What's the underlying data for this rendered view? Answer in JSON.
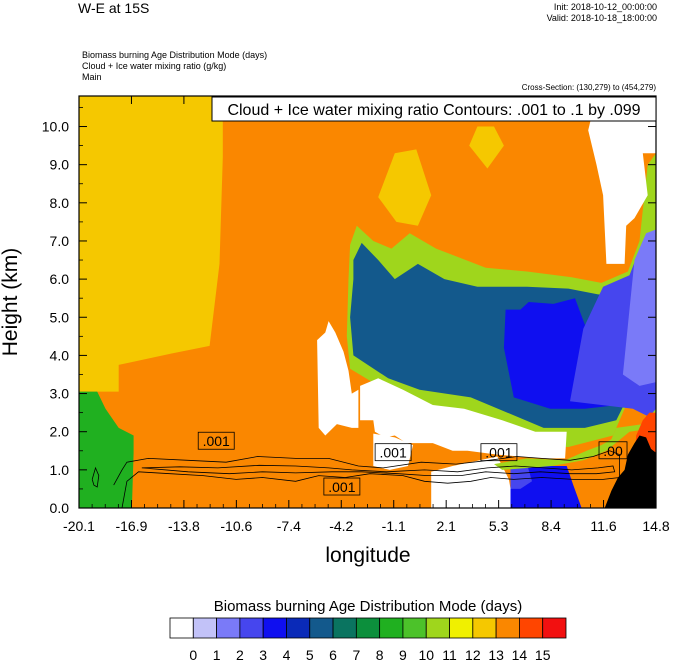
{
  "header": {
    "title": "W-E at 15S",
    "init": "Init: 2018-10-12_00:00:00",
    "valid": "Valid: 2018-10-18_18:00:00",
    "desc_lines": [
      "Biomass burning Age Distribution Mode    (days)",
      "Cloud + Ice water mixing ratio    (g/kg)",
      "Main"
    ],
    "cross_section": "Cross-Section: (130,279) to (454,279)"
  },
  "chart_data": {
    "type": "heatmap",
    "title": "",
    "xlabel": "longitude",
    "ylabel": "Height (km)",
    "xlim": [
      -20.1,
      14.8
    ],
    "ylim": [
      0.0,
      10.8
    ],
    "x_ticks": [
      "-20.1",
      "-16.9",
      "-13.8",
      "-10.6",
      "-7.4",
      "-4.2",
      "-1.1",
      "2.1",
      "5.3",
      "8.4",
      "11.6",
      "14.8"
    ],
    "y_ticks": [
      "0.0",
      "1.0",
      "2.0",
      "3.0",
      "4.0",
      "5.0",
      "6.0",
      "7.0",
      "8.0",
      "9.0",
      "10.0"
    ],
    "contour_title": "Cloud + Ice water mixing ratio Contours: .001 to .1 by .099",
    "contour_labels": [
      {
        "text": ".001",
        "x": -11.8,
        "y": 1.75
      },
      {
        "text": ".001",
        "x": -4.2,
        "y": 0.55
      },
      {
        "text": ".001",
        "x": -1.1,
        "y": 1.45
      },
      {
        "text": ".001",
        "x": 5.3,
        "y": 1.45
      },
      {
        "text": ".00",
        "x": 12.2,
        "y": 1.5
      }
    ],
    "colorbar": {
      "title": "Biomass burning Age Distribution Mode  (days)",
      "labels": [
        "0",
        "1",
        "2",
        "3",
        "4",
        "5",
        "6",
        "7",
        "8",
        "9",
        "10",
        "11",
        "12",
        "13",
        "14",
        "15"
      ],
      "colors": [
        "#ffffff",
        "#c2c2f8",
        "#7a7af8",
        "#4646ee",
        "#0f0ff0",
        "#0a2ab8",
        "#13598c",
        "#0a7460",
        "#0c8f3c",
        "#20b020",
        "#4cc22a",
        "#9fd61c",
        "#f0f000",
        "#f5c800",
        "#fa8700",
        "#ff4500",
        "#f21010"
      ]
    },
    "regions": [
      {
        "days": 13,
        "points": [
          [
            -20.1,
            3.05
          ],
          [
            -20.1,
            10.8
          ],
          [
            -11.4,
            10.8
          ],
          [
            -11.4,
            9.2
          ],
          [
            -11.6,
            6.4
          ],
          [
            -12.2,
            4.25
          ],
          [
            -14.5,
            4.05
          ],
          [
            -17.7,
            3.75
          ],
          [
            -17.7,
            3.05
          ]
        ]
      },
      {
        "days": 9,
        "points": [
          [
            -20.1,
            0.0
          ],
          [
            -20.1,
            3.05
          ],
          [
            -19.0,
            3.05
          ],
          [
            -18.5,
            2.6
          ],
          [
            -17.7,
            2.1
          ],
          [
            -16.8,
            1.9
          ],
          [
            -16.8,
            1.45
          ],
          [
            -16.9,
            0.0
          ]
        ]
      },
      {
        "days": 13,
        "points": [
          [
            -2.0,
            8.15
          ],
          [
            -1.0,
            9.3
          ],
          [
            0.3,
            9.4
          ],
          [
            1.2,
            8.2
          ],
          [
            0.4,
            7.4
          ],
          [
            -0.9,
            7.5
          ]
        ]
      },
      {
        "days": 13,
        "points": [
          [
            3.5,
            9.5
          ],
          [
            4.0,
            10.0
          ],
          [
            5.0,
            10.0
          ],
          [
            5.6,
            9.5
          ],
          [
            4.6,
            8.9
          ]
        ]
      },
      {
        "days": 11,
        "points": [
          [
            -3.7,
            6.9
          ],
          [
            -3.3,
            7.4
          ],
          [
            -2.3,
            7.0
          ],
          [
            -1.2,
            6.8
          ],
          [
            -0.1,
            7.2
          ],
          [
            1.5,
            6.8
          ],
          [
            4.5,
            6.3
          ],
          [
            7.0,
            6.2
          ],
          [
            9.7,
            6.05
          ],
          [
            11.5,
            5.9
          ],
          [
            13.1,
            6.2
          ],
          [
            13.8,
            7.0
          ],
          [
            14.3,
            9.0
          ],
          [
            14.8,
            9.3
          ],
          [
            14.8,
            4.25
          ],
          [
            13.5,
            3.2
          ],
          [
            12.2,
            1.9
          ],
          [
            9.5,
            1.6
          ],
          [
            7.0,
            1.6
          ],
          [
            4.0,
            2.3
          ],
          [
            0.8,
            2.6
          ],
          [
            -1.2,
            3.0
          ],
          [
            -3.7,
            3.65
          ],
          [
            -3.9,
            4.5
          ],
          [
            -3.8,
            6.0
          ]
        ]
      },
      {
        "days": 6,
        "points": [
          [
            -3.5,
            6.5
          ],
          [
            -3.0,
            6.95
          ],
          [
            -2.0,
            6.5
          ],
          [
            -1.0,
            6.0
          ],
          [
            0.4,
            6.4
          ],
          [
            2.0,
            6.0
          ],
          [
            4.0,
            5.8
          ],
          [
            7.0,
            5.8
          ],
          [
            9.5,
            5.75
          ],
          [
            11.3,
            5.6
          ],
          [
            14.0,
            5.5
          ],
          [
            14.8,
            4.4
          ],
          [
            14.8,
            3.0
          ],
          [
            13.2,
            3.0
          ],
          [
            12.4,
            2.3
          ],
          [
            10.5,
            2.1
          ],
          [
            8.0,
            2.1
          ],
          [
            5.8,
            2.5
          ],
          [
            3.6,
            2.9
          ],
          [
            0.5,
            3.1
          ],
          [
            -1.4,
            3.4
          ],
          [
            -3.5,
            4.0
          ],
          [
            -3.7,
            5.0
          ],
          [
            -3.5,
            6.0
          ]
        ]
      },
      {
        "days": 4,
        "points": [
          [
            5.6,
            4.2
          ],
          [
            5.7,
            5.2
          ],
          [
            6.6,
            5.2
          ],
          [
            7.1,
            5.4
          ],
          [
            8.6,
            5.35
          ],
          [
            9.9,
            5.5
          ],
          [
            10.5,
            4.8
          ],
          [
            11.6,
            4.4
          ],
          [
            13.2,
            3.8
          ],
          [
            13.4,
            3.3
          ],
          [
            12.5,
            2.7
          ],
          [
            10.5,
            2.6
          ],
          [
            8.4,
            2.6
          ],
          [
            6.2,
            2.9
          ]
        ]
      },
      {
        "days": 3,
        "points": [
          [
            9.6,
            2.8
          ],
          [
            10.4,
            4.7
          ],
          [
            11.6,
            5.8
          ],
          [
            13.2,
            6.1
          ],
          [
            14.0,
            7.0
          ],
          [
            14.6,
            6.5
          ],
          [
            14.8,
            6.0
          ],
          [
            14.8,
            2.3
          ],
          [
            13.4,
            2.6
          ]
        ]
      },
      {
        "days": 2,
        "points": [
          [
            12.8,
            3.5
          ],
          [
            13.5,
            6.5
          ],
          [
            14.2,
            7.2
          ],
          [
            14.8,
            7.3
          ],
          [
            14.8,
            3.3
          ],
          [
            13.8,
            3.2
          ]
        ]
      },
      {
        "days": 0,
        "points": [
          [
            10.7,
            9.9
          ],
          [
            11.2,
            10.8
          ],
          [
            14.8,
            10.8
          ],
          [
            14.8,
            9.3
          ],
          [
            14.0,
            9.3
          ],
          [
            14.3,
            8.2
          ],
          [
            13.5,
            7.6
          ],
          [
            13.0,
            7.4
          ],
          [
            12.9,
            6.4
          ],
          [
            11.8,
            6.4
          ],
          [
            11.6,
            8.2
          ],
          [
            11.2,
            9.0
          ]
        ]
      },
      {
        "days": 0,
        "points": [
          [
            -5.7,
            4.4
          ],
          [
            -5.6,
            2.1
          ],
          [
            -5.2,
            1.9
          ],
          [
            -4.5,
            2.2
          ],
          [
            -3.6,
            2.1
          ],
          [
            -3.2,
            2.1
          ],
          [
            -3.2,
            3.1
          ],
          [
            -3.6,
            3.0
          ],
          [
            -3.8,
            3.6
          ],
          [
            -4.1,
            4.1
          ],
          [
            -4.6,
            4.6
          ],
          [
            -5.0,
            4.9
          ],
          [
            -5.2,
            4.6
          ]
        ]
      },
      {
        "days": 0,
        "points": [
          [
            -3.1,
            3.2
          ],
          [
            -3.1,
            2.3
          ],
          [
            -2.3,
            2.3
          ],
          [
            -2.2,
            2.0
          ],
          [
            -1.6,
            1.85
          ],
          [
            -1.0,
            1.9
          ],
          [
            -0.3,
            1.7
          ],
          [
            1.3,
            1.7
          ],
          [
            2.5,
            1.5
          ],
          [
            3.4,
            1.5
          ],
          [
            5.2,
            1.4
          ],
          [
            7.8,
            1.3
          ],
          [
            9.3,
            1.3
          ],
          [
            9.4,
            2.0
          ],
          [
            7.5,
            2.0
          ],
          [
            5.5,
            2.3
          ],
          [
            3.2,
            2.6
          ],
          [
            1.3,
            2.7
          ],
          [
            -0.5,
            3.1
          ],
          [
            -2.0,
            3.4
          ]
        ]
      },
      {
        "days": 0,
        "points": [
          [
            -2.3,
            1.95
          ],
          [
            -2.3,
            1.1
          ],
          [
            -1.3,
            1.0
          ],
          [
            -0.2,
            1.1
          ],
          [
            0.1,
            1.65
          ],
          [
            -1.0,
            1.85
          ]
        ]
      },
      {
        "days": 0,
        "points": [
          [
            1.2,
            0.0
          ],
          [
            1.2,
            0.95
          ],
          [
            2.5,
            1.1
          ],
          [
            5.2,
            1.35
          ],
          [
            5.5,
            1.1
          ],
          [
            5.9,
            0.75
          ],
          [
            6.2,
            0.0
          ]
        ]
      },
      {
        "days": 4,
        "points": [
          [
            6.0,
            0.0
          ],
          [
            6.0,
            1.1
          ],
          [
            7.1,
            1.15
          ],
          [
            8.1,
            1.1
          ],
          [
            9.4,
            1.1
          ],
          [
            9.8,
            0.6
          ],
          [
            10.3,
            0.0
          ]
        ]
      },
      {
        "days": 3,
        "points": [
          [
            6.0,
            0.5
          ],
          [
            6.0,
            1.1
          ],
          [
            7.0,
            1.15
          ],
          [
            7.3,
            0.7
          ],
          [
            6.6,
            0.5
          ]
        ]
      },
      {
        "days": 11,
        "points": [
          [
            5.0,
            1.15
          ],
          [
            7.0,
            1.3
          ],
          [
            9.3,
            1.25
          ],
          [
            10.6,
            1.5
          ],
          [
            11.5,
            1.65
          ],
          [
            12.1,
            1.8
          ],
          [
            12.4,
            2.1
          ],
          [
            14.0,
            2.2
          ],
          [
            14.8,
            2.6
          ],
          [
            14.8,
            2.1
          ],
          [
            13.2,
            2.0
          ],
          [
            11.8,
            1.5
          ],
          [
            10.4,
            1.25
          ],
          [
            8.5,
            1.1
          ],
          [
            5.5,
            1.0
          ]
        ]
      },
      {
        "days": 15,
        "points": [
          [
            13.3,
            0.0
          ],
          [
            13.6,
            1.9
          ],
          [
            14.0,
            2.3
          ],
          [
            14.4,
            2.5
          ],
          [
            14.8,
            2.5
          ],
          [
            14.8,
            0.0
          ]
        ]
      }
    ],
    "terrain": [
      [
        11.7,
        0.0
      ],
      [
        12.1,
        0.45
      ],
      [
        12.5,
        0.8
      ],
      [
        12.9,
        1.0
      ],
      [
        13.1,
        1.4
      ],
      [
        13.5,
        1.7
      ],
      [
        13.8,
        1.9
      ],
      [
        14.2,
        1.85
      ],
      [
        14.5,
        1.55
      ],
      [
        14.8,
        1.45
      ],
      [
        14.8,
        0.0
      ]
    ],
    "contours": [
      [
        [
          -18.0,
          0.6
        ],
        [
          -17.5,
          1.0
        ],
        [
          -17.2,
          1.2
        ],
        [
          -15.9,
          1.3
        ],
        [
          -13.5,
          1.25
        ],
        [
          -11.2,
          1.2
        ],
        [
          -9.3,
          1.35
        ],
        [
          -7.0,
          1.3
        ],
        [
          -5.0,
          1.3
        ],
        [
          -3.2,
          1.1
        ],
        [
          -1.7,
          1.05
        ],
        [
          0.6,
          1.2
        ],
        [
          2.7,
          1.15
        ],
        [
          4.7,
          1.25
        ],
        [
          6.4,
          1.35
        ],
        [
          7.9,
          1.3
        ],
        [
          9.6,
          1.25
        ],
        [
          11.0,
          1.35
        ],
        [
          12.0,
          1.5
        ],
        [
          12.6,
          1.4
        ],
        [
          12.6,
          0.8
        ],
        [
          11.6,
          0.75
        ],
        [
          9.8,
          0.75
        ],
        [
          7.9,
          0.8
        ],
        [
          6.2,
          0.75
        ],
        [
          4.8,
          0.8
        ],
        [
          3.6,
          0.7
        ],
        [
          2.2,
          0.65
        ],
        [
          0.8,
          0.7
        ],
        [
          -0.5,
          0.85
        ],
        [
          -2.5,
          0.9
        ],
        [
          -4.0,
          0.8
        ],
        [
          -5.6,
          0.85
        ],
        [
          -7.0,
          0.7
        ],
        [
          -9.0,
          0.8
        ],
        [
          -10.6,
          0.75
        ],
        [
          -12.6,
          0.85
        ],
        [
          -14.6,
          0.9
        ],
        [
          -16.5,
          0.95
        ],
        [
          -17.2,
          0.7
        ],
        [
          -17.5,
          0.0
        ]
      ],
      [
        [
          -16.3,
          1.05
        ],
        [
          -14.0,
          1.08
        ],
        [
          -11.7,
          1.05
        ],
        [
          -9.2,
          1.12
        ],
        [
          -7.0,
          1.1
        ],
        [
          -5.0,
          1.05
        ],
        [
          -3.6,
          1.0
        ],
        [
          -1.5,
          0.95
        ],
        [
          0.8,
          1.0
        ],
        [
          2.8,
          0.95
        ],
        [
          4.6,
          1.05
        ],
        [
          6.3,
          1.1
        ],
        [
          8.0,
          1.05
        ],
        [
          9.7,
          1.0
        ],
        [
          11.3,
          1.05
        ],
        [
          12.2,
          1.1
        ],
        [
          12.3,
          0.95
        ],
        [
          11.2,
          0.9
        ],
        [
          9.6,
          0.9
        ],
        [
          7.8,
          0.95
        ],
        [
          6.2,
          0.9
        ],
        [
          4.5,
          0.95
        ],
        [
          3.0,
          0.85
        ],
        [
          1.0,
          0.85
        ],
        [
          -0.8,
          0.9
        ],
        [
          -3.0,
          0.95
        ],
        [
          -4.8,
          0.95
        ],
        [
          -7.0,
          0.92
        ],
        [
          -9.0,
          0.95
        ],
        [
          -11.0,
          0.9
        ],
        [
          -13.5,
          0.95
        ],
        [
          -16.3,
          1.05
        ]
      ],
      [
        [
          -19.3,
          0.75
        ],
        [
          -19.1,
          1.05
        ],
        [
          -18.9,
          0.85
        ],
        [
          -19.0,
          0.55
        ],
        [
          -19.2,
          0.6
        ],
        [
          -19.3,
          0.75
        ]
      ],
      [
        [
          12.7,
          0.45
        ],
        [
          12.9,
          0.9
        ],
        [
          13.1,
          1.25
        ],
        [
          13.5,
          1.35
        ],
        [
          13.7,
          1.0
        ],
        [
          13.4,
          0.6
        ],
        [
          13.0,
          0.45
        ],
        [
          12.7,
          0.45
        ]
      ]
    ]
  }
}
